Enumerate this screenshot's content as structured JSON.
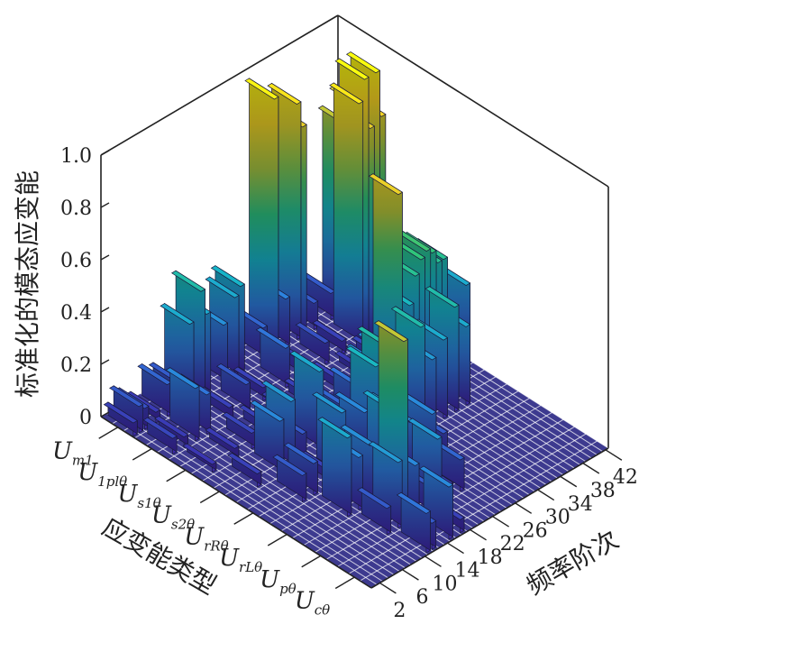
{
  "chart_data": {
    "type": "bar3d",
    "zlabel": "标准化的模态应变能",
    "xlabel": "频率阶次",
    "ylabel": "应变能类型",
    "zticks": [
      "0",
      "0.2",
      "0.4",
      "0.6",
      "0.8",
      "1.0"
    ],
    "zlim": [
      0,
      1
    ],
    "xticks": [
      "2",
      "6",
      "10",
      "14",
      "18",
      "22",
      "26",
      "30",
      "34",
      "38",
      "42"
    ],
    "xlim": [
      1,
      42
    ],
    "categories": [
      {
        "main": "U",
        "sub": "m1"
      },
      {
        "main": "U",
        "sub": "1plθ"
      },
      {
        "main": "U",
        "sub": "s1θ"
      },
      {
        "main": "U",
        "sub": "s2θ"
      },
      {
        "main": "U",
        "sub": "rRθ"
      },
      {
        "main": "U",
        "sub": "rLθ"
      },
      {
        "main": "U",
        "sub": "pθ"
      },
      {
        "main": "U",
        "sub": "cθ"
      }
    ],
    "colormap": [
      "#3e26a8",
      "#2e7fe0",
      "#17b6c8",
      "#2fc57a",
      "#b5c53a",
      "#f9d423",
      "#f9fb0e"
    ],
    "floor_color": "#3d3a8f",
    "bars": [
      {
        "cat": 0,
        "x": 1,
        "v": 0.05
      },
      {
        "cat": 0,
        "x": 2,
        "v": 0.1
      },
      {
        "cat": 0,
        "x": 3,
        "v": 0.08
      },
      {
        "cat": 0,
        "x": 5,
        "v": 0.04
      },
      {
        "cat": 0,
        "x": 7,
        "v": 0.12
      },
      {
        "cat": 0,
        "x": 9,
        "v": 0.1
      },
      {
        "cat": 0,
        "x": 11,
        "v": 0.3
      },
      {
        "cat": 0,
        "x": 13,
        "v": 0.4
      },
      {
        "cat": 0,
        "x": 14,
        "v": 0.3
      },
      {
        "cat": 0,
        "x": 17,
        "v": 0.22
      },
      {
        "cat": 0,
        "x": 19,
        "v": 0.3
      },
      {
        "cat": 0,
        "x": 20,
        "v": 0.33
      },
      {
        "cat": 0,
        "x": 24,
        "v": 0.12
      },
      {
        "cat": 0,
        "x": 26,
        "v": 0.97
      },
      {
        "cat": 0,
        "x": 28,
        "v": 0.18
      },
      {
        "cat": 0,
        "x": 30,
        "v": 0.9
      },
      {
        "cat": 0,
        "x": 31,
        "v": 0.8
      },
      {
        "cat": 0,
        "x": 33,
        "v": 0.1
      },
      {
        "cat": 0,
        "x": 36,
        "v": 0.1
      },
      {
        "cat": 0,
        "x": 39,
        "v": 0.7
      },
      {
        "cat": 0,
        "x": 40,
        "v": 0.62
      },
      {
        "cat": 0,
        "x": 41,
        "v": 0.75
      },
      {
        "cat": 0,
        "x": 42,
        "v": 0.7
      },
      {
        "cat": 1,
        "x": 2,
        "v": 0.06
      },
      {
        "cat": 1,
        "x": 4,
        "v": 0.04
      },
      {
        "cat": 1,
        "x": 6,
        "v": 0.2
      },
      {
        "cat": 1,
        "x": 8,
        "v": 0.15
      },
      {
        "cat": 1,
        "x": 12,
        "v": 0.05
      },
      {
        "cat": 1,
        "x": 15,
        "v": 0.1
      },
      {
        "cat": 1,
        "x": 18,
        "v": 0.05
      },
      {
        "cat": 1,
        "x": 22,
        "v": 0.15
      },
      {
        "cat": 1,
        "x": 25,
        "v": 0.06
      },
      {
        "cat": 1,
        "x": 29,
        "v": 0.08
      },
      {
        "cat": 1,
        "x": 32,
        "v": 0.05
      },
      {
        "cat": 1,
        "x": 35,
        "v": 0.92
      },
      {
        "cat": 1,
        "x": 36,
        "v": 1.0
      },
      {
        "cat": 1,
        "x": 37,
        "v": 0.8
      },
      {
        "cat": 1,
        "x": 38,
        "v": 1.0
      },
      {
        "cat": 1,
        "x": 39,
        "v": 0.82
      },
      {
        "cat": 1,
        "x": 41,
        "v": 0.5
      },
      {
        "cat": 2,
        "x": 3,
        "v": 0.03
      },
      {
        "cat": 2,
        "x": 7,
        "v": 0.04
      },
      {
        "cat": 2,
        "x": 10,
        "v": 0.06
      },
      {
        "cat": 2,
        "x": 13,
        "v": 0.05
      },
      {
        "cat": 2,
        "x": 17,
        "v": 0.05
      },
      {
        "cat": 2,
        "x": 21,
        "v": 0.05
      },
      {
        "cat": 2,
        "x": 26,
        "v": 0.05
      },
      {
        "cat": 2,
        "x": 30,
        "v": 0.04
      },
      {
        "cat": 2,
        "x": 33,
        "v": 0.06
      },
      {
        "cat": 2,
        "x": 37,
        "v": 0.35
      },
      {
        "cat": 2,
        "x": 38,
        "v": 0.4
      },
      {
        "cat": 2,
        "x": 39,
        "v": 0.3
      },
      {
        "cat": 3,
        "x": 5,
        "v": 0.05
      },
      {
        "cat": 3,
        "x": 9,
        "v": 0.2
      },
      {
        "cat": 3,
        "x": 11,
        "v": 0.25
      },
      {
        "cat": 3,
        "x": 13,
        "v": 0.1
      },
      {
        "cat": 3,
        "x": 16,
        "v": 0.3
      },
      {
        "cat": 3,
        "x": 18,
        "v": 0.1
      },
      {
        "cat": 3,
        "x": 20,
        "v": 0.12
      },
      {
        "cat": 3,
        "x": 23,
        "v": 0.15
      },
      {
        "cat": 3,
        "x": 26,
        "v": 0.2
      },
      {
        "cat": 3,
        "x": 28,
        "v": 0.22
      },
      {
        "cat": 3,
        "x": 30,
        "v": 0.8
      },
      {
        "cat": 3,
        "x": 32,
        "v": 0.35
      },
      {
        "cat": 3,
        "x": 33,
        "v": 0.45
      },
      {
        "cat": 3,
        "x": 34,
        "v": 0.5
      },
      {
        "cat": 3,
        "x": 35,
        "v": 0.52
      },
      {
        "cat": 3,
        "x": 36,
        "v": 0.5
      },
      {
        "cat": 3,
        "x": 37,
        "v": 0.45
      },
      {
        "cat": 3,
        "x": 38,
        "v": 0.45
      },
      {
        "cat": 3,
        "x": 40,
        "v": 0.1
      },
      {
        "cat": 3,
        "x": 42,
        "v": 0.3
      },
      {
        "cat": 4,
        "x": 7,
        "v": 0.1
      },
      {
        "cat": 4,
        "x": 9,
        "v": 0.12
      },
      {
        "cat": 4,
        "x": 12,
        "v": 0.05
      },
      {
        "cat": 4,
        "x": 14,
        "v": 0.25
      },
      {
        "cat": 4,
        "x": 16,
        "v": 0.1
      },
      {
        "cat": 4,
        "x": 18,
        "v": 0.2
      },
      {
        "cat": 4,
        "x": 20,
        "v": 0.35
      },
      {
        "cat": 4,
        "x": 22,
        "v": 0.4
      },
      {
        "cat": 4,
        "x": 24,
        "v": 0.22
      },
      {
        "cat": 4,
        "x": 26,
        "v": 0.1
      },
      {
        "cat": 4,
        "x": 28,
        "v": 0.4
      },
      {
        "cat": 4,
        "x": 30,
        "v": 0.25
      },
      {
        "cat": 4,
        "x": 32,
        "v": 0.3
      },
      {
        "cat": 4,
        "x": 34,
        "v": 0.4
      },
      {
        "cat": 4,
        "x": 36,
        "v": 0.3
      },
      {
        "cat": 5,
        "x": 9,
        "v": 0.3
      },
      {
        "cat": 5,
        "x": 11,
        "v": 0.2
      },
      {
        "cat": 5,
        "x": 13,
        "v": 0.22
      },
      {
        "cat": 5,
        "x": 15,
        "v": 0.1
      },
      {
        "cat": 5,
        "x": 17,
        "v": 0.3
      },
      {
        "cat": 5,
        "x": 18,
        "v": 0.28
      },
      {
        "cat": 5,
        "x": 20,
        "v": 0.22
      },
      {
        "cat": 5,
        "x": 22,
        "v": 0.15
      },
      {
        "cat": 5,
        "x": 24,
        "v": 0.2
      },
      {
        "cat": 5,
        "x": 26,
        "v": 0.1
      },
      {
        "cat": 6,
        "x": 10,
        "v": 0.1
      },
      {
        "cat": 6,
        "x": 12,
        "v": 0.25
      },
      {
        "cat": 6,
        "x": 13,
        "v": 0.7
      },
      {
        "cat": 6,
        "x": 15,
        "v": 0.2
      },
      {
        "cat": 6,
        "x": 17,
        "v": 0.1
      },
      {
        "cat": 6,
        "x": 19,
        "v": 0.25
      },
      {
        "cat": 6,
        "x": 21,
        "v": 0.05
      },
      {
        "cat": 6,
        "x": 23,
        "v": 0.12
      },
      {
        "cat": 7,
        "x": 11,
        "v": 0.15
      },
      {
        "cat": 7,
        "x": 12,
        "v": 0.1
      },
      {
        "cat": 7,
        "x": 15,
        "v": 0.2
      },
      {
        "cat": 7,
        "x": 17,
        "v": 0.05
      }
    ]
  }
}
